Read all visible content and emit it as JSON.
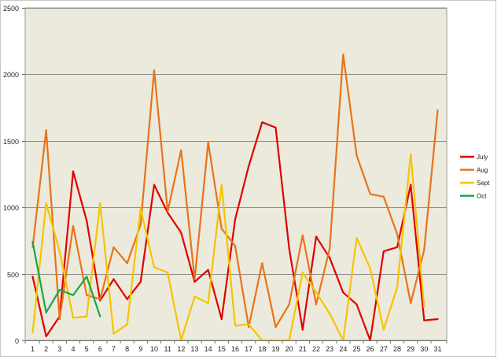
{
  "chart_data": {
    "type": "line",
    "categories": [
      "1",
      "2",
      "3",
      "4",
      "5",
      "6",
      "7",
      "8",
      "9",
      "10",
      "11",
      "12",
      "13",
      "14",
      "15",
      "16",
      "17",
      "18",
      "19",
      "20",
      "21",
      "22",
      "23",
      "24",
      "25",
      "26",
      "27",
      "28",
      "29",
      "30",
      "31"
    ],
    "y_ticks": [
      "0",
      "500",
      "1000",
      "1500",
      "2000",
      "2500"
    ],
    "ylim": [
      0,
      2500
    ],
    "grid": true,
    "legend_position": "right",
    "plot_background": "#eceadc",
    "series": [
      {
        "name": "July",
        "color": "#e00000",
        "values": [
          480,
          30,
          180,
          1270,
          900,
          300,
          460,
          310,
          440,
          1170,
          960,
          810,
          440,
          530,
          160,
          910,
          1310,
          1640,
          1600,
          690,
          80,
          780,
          620,
          360,
          270,
          0,
          670,
          700,
          1170,
          150,
          160
        ]
      },
      {
        "name": "Aug",
        "color": "#e8731a",
        "values": [
          700,
          1580,
          160,
          860,
          340,
          310,
          700,
          580,
          870,
          2030,
          970,
          1430,
          460,
          1490,
          840,
          710,
          100,
          580,
          100,
          270,
          790,
          270,
          690,
          2150,
          1390,
          1100,
          1080,
          800,
          280,
          680,
          1730
        ]
      },
      {
        "name": "Sept",
        "color": "#f5c400",
        "values": [
          60,
          1030,
          670,
          170,
          180,
          1030,
          50,
          120,
          990,
          550,
          510,
          0,
          330,
          280,
          1170,
          110,
          120,
          0,
          0,
          0,
          510,
          360,
          200,
          0,
          770,
          540,
          80,
          400,
          1400,
          250,
          null
        ]
      },
      {
        "name": "Oct",
        "color": "#12a84e",
        "values": [
          740,
          210,
          380,
          340,
          480,
          180,
          null,
          null,
          null,
          null,
          null,
          null,
          null,
          null,
          null,
          null,
          null,
          null,
          null,
          null,
          null,
          null,
          null,
          null,
          null,
          null,
          null,
          null,
          null,
          null,
          null
        ]
      }
    ]
  }
}
